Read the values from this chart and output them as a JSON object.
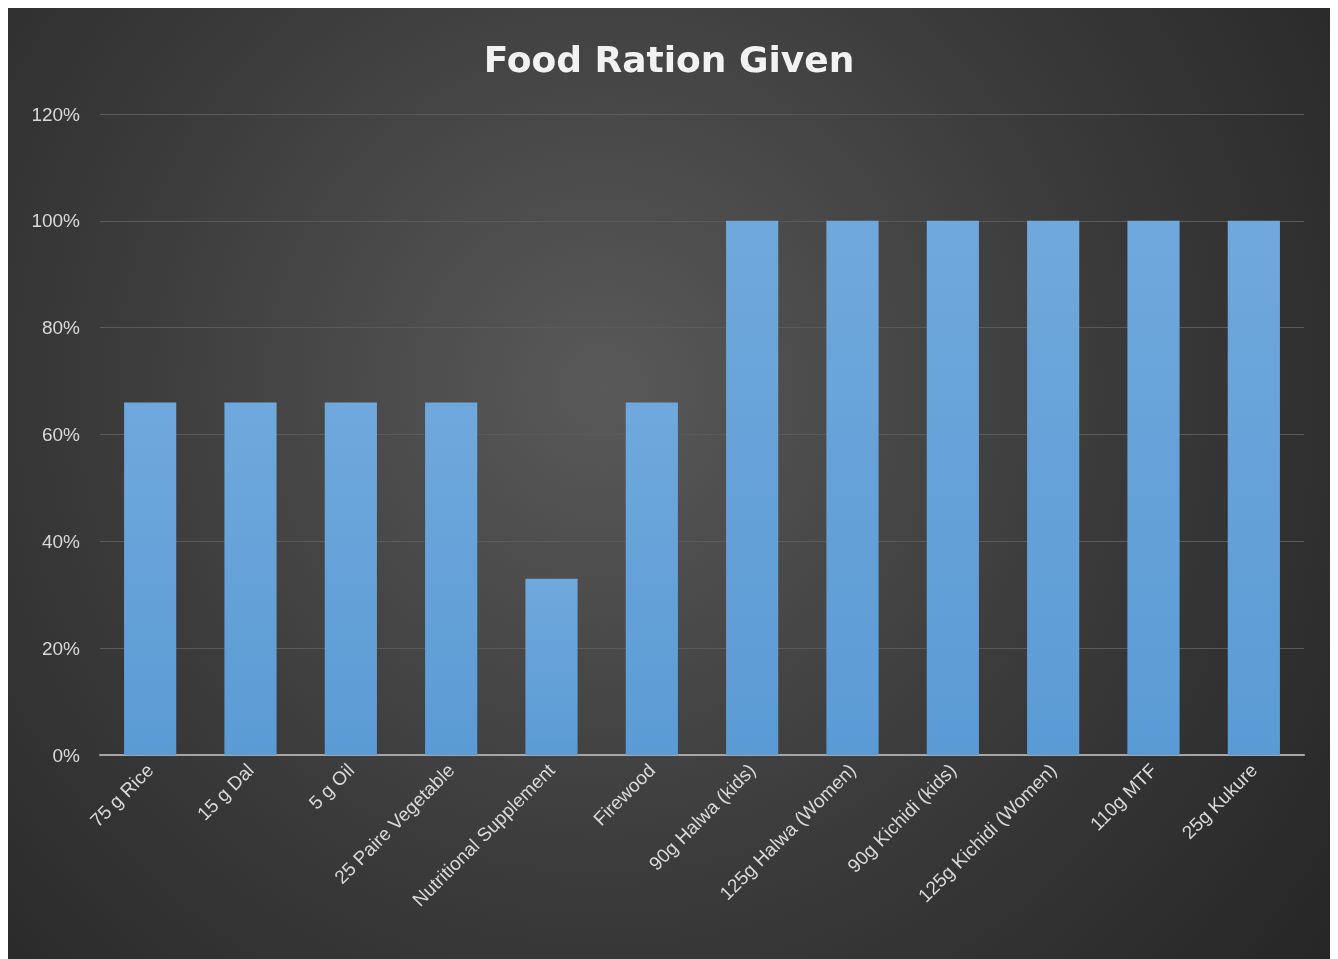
{
  "chart_data": {
    "type": "bar",
    "title": "Food Ration Given",
    "categories": [
      "75 g Rice",
      "15 g Dal",
      "5 g Oil",
      "25 Paire Vegetable",
      "Nutritional Supplement",
      "Firewood",
      "90g Halwa (kids)",
      "125g Halwa (Women)",
      "90g Kichidi (kids)",
      "125g Kichidi (Women)",
      "110g MTF",
      "25g Kukure"
    ],
    "values": [
      66,
      66,
      66,
      66,
      33,
      66,
      100,
      100,
      100,
      100,
      100,
      100
    ],
    "color": "#5b9bd5",
    "ylim": [
      0,
      120
    ],
    "yticks": [
      {
        "value": 0,
        "label": "0%"
      },
      {
        "value": 20,
        "label": "20%"
      },
      {
        "value": 40,
        "label": "40%"
      },
      {
        "value": 60,
        "label": "60%"
      },
      {
        "value": 80,
        "label": "80%"
      },
      {
        "value": 100,
        "label": "100%"
      },
      {
        "value": 120,
        "label": "120%"
      }
    ],
    "grid": "y"
  }
}
